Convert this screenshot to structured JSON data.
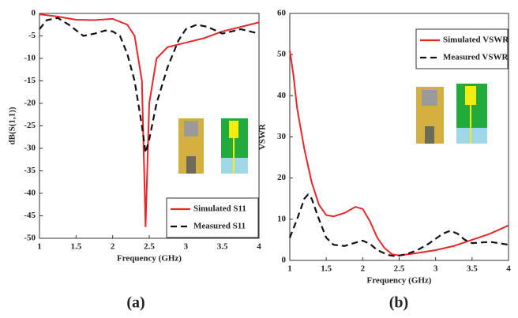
{
  "chart_data": [
    {
      "type": "line",
      "caption": "(a)",
      "x_label": "Frequency (GHz)",
      "y_label": "dB(S(1,1))",
      "xlim": [
        1,
        4
      ],
      "xticks": [
        1,
        1.5,
        2,
        2.5,
        3,
        3.5,
        4
      ],
      "ylim": [
        -50,
        0
      ],
      "yticks": [
        0,
        -5,
        -10,
        -15,
        -20,
        -25,
        -30,
        -35,
        -40,
        -45,
        -50
      ],
      "legend": "lower right",
      "series": [
        {
          "name": "Simulated S11",
          "color": "#e8262a",
          "line_style": "solid",
          "x": [
            1,
            1.25,
            1.5,
            1.75,
            2,
            2.2,
            2.3,
            2.4,
            2.45,
            2.5,
            2.6,
            2.75,
            3,
            3.25,
            3.5,
            3.75,
            4
          ],
          "values": [
            -0.2,
            -0.7,
            -1.4,
            -1.5,
            -1.2,
            -2.5,
            -5,
            -15,
            -47.5,
            -20,
            -10,
            -7.5,
            -6.5,
            -5.5,
            -4,
            -3,
            -2
          ]
        },
        {
          "name": "Measured S11",
          "color": "#111111",
          "line_style": "dashed",
          "x": [
            1,
            1.1,
            1.25,
            1.4,
            1.6,
            1.75,
            1.9,
            2,
            2.1,
            2.2,
            2.3,
            2.4,
            2.45,
            2.5,
            2.6,
            2.75,
            2.9,
            3,
            3.15,
            3.3,
            3.5,
            3.75,
            4
          ],
          "values": [
            -3.5,
            -1.5,
            -1,
            -2.5,
            -5,
            -4.5,
            -3.8,
            -4,
            -5,
            -9,
            -15,
            -25,
            -31,
            -28,
            -20,
            -12,
            -6,
            -3.5,
            -2.5,
            -3,
            -4.5,
            -3.5,
            -4.5
          ]
        }
      ]
    },
    {
      "type": "line",
      "caption": "(b)",
      "x_label": "Frequency (GHz)",
      "y_label": "VSWR",
      "xlim": [
        1,
        4
      ],
      "xticks": [
        1,
        1.5,
        2,
        2.5,
        3,
        3.5,
        4
      ],
      "ylim": [
        0,
        60
      ],
      "yticks": [
        0,
        10,
        20,
        30,
        40,
        50,
        60
      ],
      "legend": "upper right",
      "series": [
        {
          "name": "Simulated VSWR",
          "color": "#e8262a",
          "line_style": "solid",
          "x": [
            1,
            1.05,
            1.1,
            1.2,
            1.3,
            1.4,
            1.5,
            1.6,
            1.75,
            1.9,
            2,
            2.1,
            2.2,
            2.3,
            2.4,
            2.5,
            2.75,
            3,
            3.25,
            3.5,
            3.75,
            4
          ],
          "values": [
            51,
            45,
            37,
            27,
            19,
            13.5,
            11,
            10.7,
            11.5,
            13,
            12.5,
            9.5,
            5.5,
            3,
            1.5,
            1.2,
            1.8,
            2.5,
            3.5,
            5,
            6.5,
            8.5
          ]
        },
        {
          "name": "Measured VSWR",
          "color": "#111111",
          "line_style": "dashed",
          "x": [
            1,
            1.1,
            1.2,
            1.25,
            1.3,
            1.4,
            1.5,
            1.6,
            1.75,
            1.9,
            2,
            2.1,
            2.2,
            2.35,
            2.45,
            2.6,
            2.75,
            2.9,
            3.1,
            3.2,
            3.3,
            3.4,
            3.5,
            3.75,
            4
          ],
          "values": [
            5.5,
            10,
            15,
            16,
            15,
            10,
            5.5,
            3.8,
            3.5,
            4.3,
            4.8,
            4,
            2.5,
            1.3,
            1,
            1.5,
            2.5,
            4,
            6.5,
            7.2,
            6.5,
            5,
            4.2,
            4.5,
            3.8
          ]
        }
      ]
    }
  ]
}
